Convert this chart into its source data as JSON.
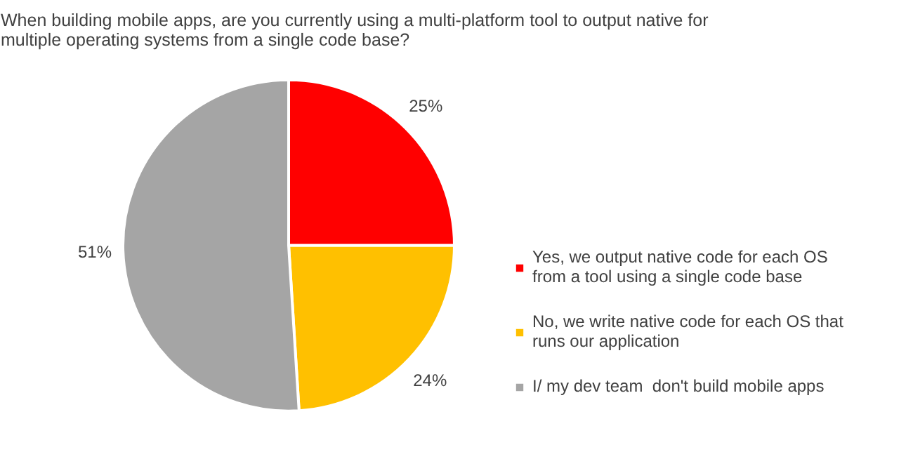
{
  "chart_data": {
    "type": "pie",
    "title": "When building mobile apps, are you currently using a multi-platform tool to output native for multiple operating systems from a single code base?",
    "categories": [
      "Yes, we output native code for each OS from a tool using a single code base",
      "No, we write native code for each OS that runs our application",
      "I/ my dev team  don't build mobile apps"
    ],
    "values": [
      25,
      24,
      51
    ],
    "colors": [
      "#ff0000",
      "#ffc000",
      "#a5a5a5"
    ],
    "value_labels": [
      "25%",
      "24%",
      "51%"
    ],
    "legend": "right"
  }
}
